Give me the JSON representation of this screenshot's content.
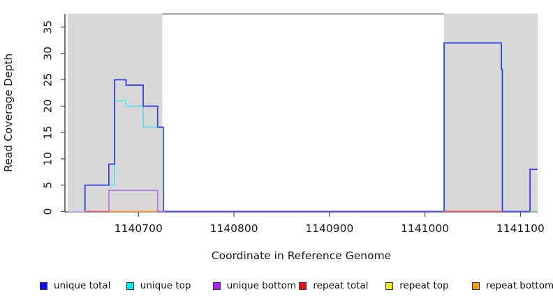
{
  "figure": {
    "background": "#ffffff"
  },
  "chart_data": {
    "type": "line",
    "subtype": "step-coverage",
    "title": "",
    "xlabel": "Coordinate in Reference Genome",
    "ylabel": "Read Coverage Depth",
    "xlim": [
      1140623,
      1141118
    ],
    "ylim": [
      0,
      37.5
    ],
    "x_ticks": [
      1140700,
      1140800,
      1140900,
      1141000,
      1141100
    ],
    "y_ticks": [
      0,
      5,
      10,
      15,
      20,
      25,
      30,
      35
    ],
    "grid": false,
    "legend_position": "bottom",
    "band_color": "#d8d8d8",
    "highlight_bands": [
      {
        "from": 1140626,
        "to": 1140725
      },
      {
        "from": 1141020,
        "to": 1141118
      }
    ],
    "series": [
      {
        "name": "repeat top",
        "slug": "repeat-top",
        "color": "#f2e535",
        "points": [
          [
            1140626,
            0
          ],
          [
            1141117,
            0
          ]
        ]
      },
      {
        "name": "repeat bottom",
        "slug": "repeat-bottom",
        "color": "#ffa030",
        "points": [
          [
            1140626,
            0
          ],
          [
            1141117,
            0
          ]
        ]
      },
      {
        "name": "repeat total",
        "slug": "repeat-total",
        "color": "#e84a5a",
        "points": [
          [
            1140626,
            0
          ],
          [
            1141117,
            0
          ]
        ]
      },
      {
        "name": "unique bottom",
        "slug": "unique-bottom",
        "color": "#b873e4",
        "points": [
          [
            1140626,
            0
          ],
          [
            1140669,
            4
          ],
          [
            1140720,
            0
          ],
          [
            1141110,
            8
          ],
          [
            1141118,
            8
          ]
        ]
      },
      {
        "name": "unique top",
        "slug": "unique-top",
        "color": "#5fdfe8",
        "points": [
          [
            1140626,
            0
          ],
          [
            1140644,
            5
          ],
          [
            1140675,
            21
          ],
          [
            1140687,
            20
          ],
          [
            1140705,
            16
          ],
          [
            1140726,
            0
          ],
          [
            1141020,
            32
          ],
          [
            1141080,
            27
          ],
          [
            1141081,
            0
          ],
          [
            1141118,
            0
          ]
        ]
      },
      {
        "name": "unique total",
        "slug": "unique-total",
        "color": "#2e3df0",
        "points": [
          [
            1140626,
            0
          ],
          [
            1140644,
            5
          ],
          [
            1140669,
            9
          ],
          [
            1140675,
            25
          ],
          [
            1140687,
            24
          ],
          [
            1140705,
            20
          ],
          [
            1140720,
            16
          ],
          [
            1140726,
            0
          ],
          [
            1141020,
            32
          ],
          [
            1141080,
            27
          ],
          [
            1141081,
            0
          ],
          [
            1141110,
            8
          ],
          [
            1141118,
            8
          ]
        ]
      }
    ],
    "baseline_overlays": [
      {
        "from": 1140626,
        "to": 1140644,
        "color": "#c7b6f5"
      },
      {
        "from": 1140644,
        "to": 1140669,
        "color": "#e06070"
      },
      {
        "from": 1140669,
        "to": 1140720,
        "color": "#ffa030"
      },
      {
        "from": 1140720,
        "to": 1140727,
        "color": "#b06ae0"
      },
      {
        "from": 1140727,
        "to": 1141019,
        "color": "#5b50f0"
      },
      {
        "from": 1141019,
        "to": 1141081,
        "color": "#e05a66"
      },
      {
        "from": 1141081,
        "to": 1141110,
        "color": "#5b50f0"
      },
      {
        "from": 1141110,
        "to": 1141117,
        "color": "#93d878"
      }
    ],
    "legend": {
      "items": [
        {
          "label": "unique total",
          "color": "#0f0fe8"
        },
        {
          "label": "unique top",
          "color": "#10e6e6"
        },
        {
          "label": "unique bottom",
          "color": "#a425ea"
        },
        {
          "label": "repeat total",
          "color": "#ea1111"
        },
        {
          "label": "repeat top",
          "color": "#f0f010"
        },
        {
          "label": "repeat bottom",
          "color": "#f59c16"
        }
      ]
    }
  }
}
